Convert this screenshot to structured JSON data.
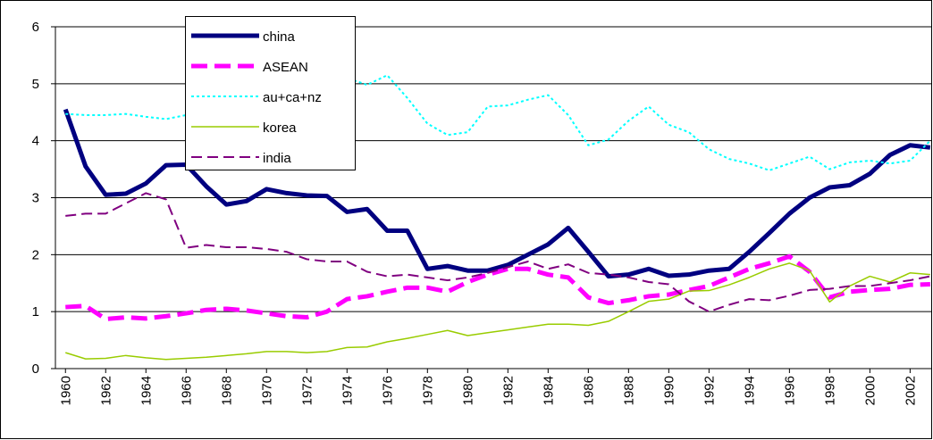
{
  "chart_data": {
    "type": "line",
    "x": [
      1960,
      1961,
      1962,
      1963,
      1964,
      1965,
      1966,
      1967,
      1968,
      1969,
      1970,
      1971,
      1972,
      1973,
      1974,
      1975,
      1976,
      1977,
      1978,
      1979,
      1980,
      1981,
      1982,
      1983,
      1984,
      1985,
      1986,
      1987,
      1988,
      1989,
      1990,
      1991,
      1992,
      1993,
      1994,
      1995,
      1996,
      1997,
      1998,
      1999,
      2000,
      2001,
      2002,
      2003
    ],
    "xlim": [
      1959.5,
      2003.05
    ],
    "xticks": [
      1960,
      1962,
      1964,
      1966,
      1968,
      1970,
      1972,
      1974,
      1976,
      1978,
      1980,
      1982,
      1984,
      1986,
      1988,
      1990,
      1992,
      1994,
      1996,
      1998,
      2000,
      2002
    ],
    "ylim": [
      0,
      6
    ],
    "yticks": [
      0,
      1,
      2,
      3,
      4,
      5,
      6
    ],
    "grid": true,
    "legend": "top-left",
    "series": [
      {
        "name": "china",
        "color": "#000080",
        "line_style": "solid-thick",
        "values": [
          4.55,
          3.55,
          3.05,
          3.07,
          3.25,
          3.57,
          3.58,
          3.2,
          2.88,
          2.94,
          3.15,
          3.08,
          3.04,
          3.03,
          2.75,
          2.8,
          2.42,
          2.42,
          1.75,
          1.8,
          1.72,
          1.72,
          1.82,
          2.0,
          2.18,
          2.47,
          2.05,
          1.62,
          1.65,
          1.75,
          1.63,
          1.65,
          1.72,
          1.75,
          2.05,
          2.38,
          2.72,
          3.0,
          3.18,
          3.22,
          3.42,
          3.75,
          3.92,
          3.88
        ]
      },
      {
        "name": "ASEAN",
        "color": "#ff00ff",
        "line_style": "dashed-thick",
        "values": [
          1.08,
          1.1,
          0.87,
          0.9,
          0.88,
          0.92,
          0.97,
          1.03,
          1.05,
          1.02,
          0.97,
          0.92,
          0.9,
          1.0,
          1.22,
          1.27,
          1.35,
          1.42,
          1.42,
          1.35,
          1.52,
          1.65,
          1.75,
          1.75,
          1.65,
          1.6,
          1.25,
          1.15,
          1.2,
          1.27,
          1.3,
          1.38,
          1.45,
          1.6,
          1.75,
          1.85,
          1.97,
          1.7,
          1.25,
          1.35,
          1.38,
          1.4,
          1.47,
          1.48
        ]
      },
      {
        "name": "au+ca+nz",
        "color": "#00ffff",
        "line_style": "dotted",
        "values": [
          4.47,
          4.45,
          4.45,
          4.47,
          4.42,
          4.38,
          4.45,
          4.6,
          4.7,
          4.8,
          4.9,
          5.0,
          5.05,
          5.1,
          5.1,
          4.98,
          5.15,
          4.75,
          4.3,
          4.1,
          4.15,
          4.6,
          4.62,
          4.72,
          4.8,
          4.45,
          3.92,
          4.02,
          4.35,
          4.6,
          4.28,
          4.15,
          3.85,
          3.68,
          3.6,
          3.48,
          3.6,
          3.72,
          3.5,
          3.62,
          3.65,
          3.6,
          3.65,
          4.0
        ]
      },
      {
        "name": "korea",
        "color": "#99cc00",
        "line_style": "solid",
        "values": [
          0.28,
          0.17,
          0.18,
          0.23,
          0.19,
          0.16,
          0.18,
          0.2,
          0.23,
          0.26,
          0.3,
          0.3,
          0.28,
          0.3,
          0.37,
          0.38,
          0.47,
          0.53,
          0.6,
          0.67,
          0.58,
          0.63,
          0.68,
          0.73,
          0.78,
          0.78,
          0.76,
          0.83,
          1.0,
          1.18,
          1.22,
          1.36,
          1.37,
          1.47,
          1.6,
          1.75,
          1.85,
          1.72,
          1.17,
          1.45,
          1.62,
          1.52,
          1.68,
          1.65
        ]
      },
      {
        "name": "india",
        "color": "#800080",
        "line_style": "dashed",
        "values": [
          2.68,
          2.72,
          2.72,
          2.9,
          3.08,
          2.97,
          2.12,
          2.17,
          2.13,
          2.13,
          2.1,
          2.05,
          1.92,
          1.88,
          1.88,
          1.7,
          1.62,
          1.65,
          1.6,
          1.55,
          1.6,
          1.68,
          1.78,
          1.88,
          1.75,
          1.83,
          1.68,
          1.65,
          1.6,
          1.52,
          1.48,
          1.18,
          1.0,
          1.12,
          1.22,
          1.2,
          1.28,
          1.38,
          1.4,
          1.45,
          1.45,
          1.5,
          1.55,
          1.62
        ]
      }
    ]
  }
}
